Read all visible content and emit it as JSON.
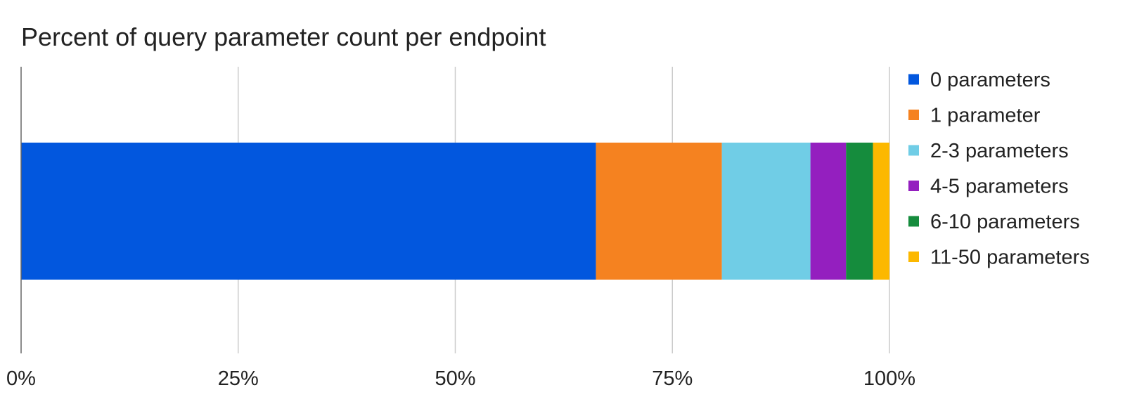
{
  "chart_data": {
    "type": "bar",
    "orientation": "horizontal",
    "stacked": "percent",
    "title": "Percent of query parameter count per endpoint",
    "xlabel": "",
    "ylabel": "",
    "categories": [
      ""
    ],
    "xlim": [
      0,
      100
    ],
    "x_ticks": [
      "0%",
      "25%",
      "50%",
      "75%",
      "100%"
    ],
    "grid": "vertical",
    "legend_position": "right",
    "series": [
      {
        "name": "0 parameters",
        "values": [
          66.2
        ],
        "color": "#0257de"
      },
      {
        "name": "1 parameter",
        "values": [
          14.5
        ],
        "color": "#f58220"
      },
      {
        "name": "2-3 parameters",
        "values": [
          10.2
        ],
        "color": "#70cde6"
      },
      {
        "name": "4-5 parameters",
        "values": [
          4.1
        ],
        "color": "#941fbf"
      },
      {
        "name": "6-10 parameters",
        "values": [
          3.1
        ],
        "color": "#158c3d"
      },
      {
        "name": "11-50 parameters",
        "values": [
          1.9
        ],
        "color": "#fcb800"
      }
    ]
  }
}
